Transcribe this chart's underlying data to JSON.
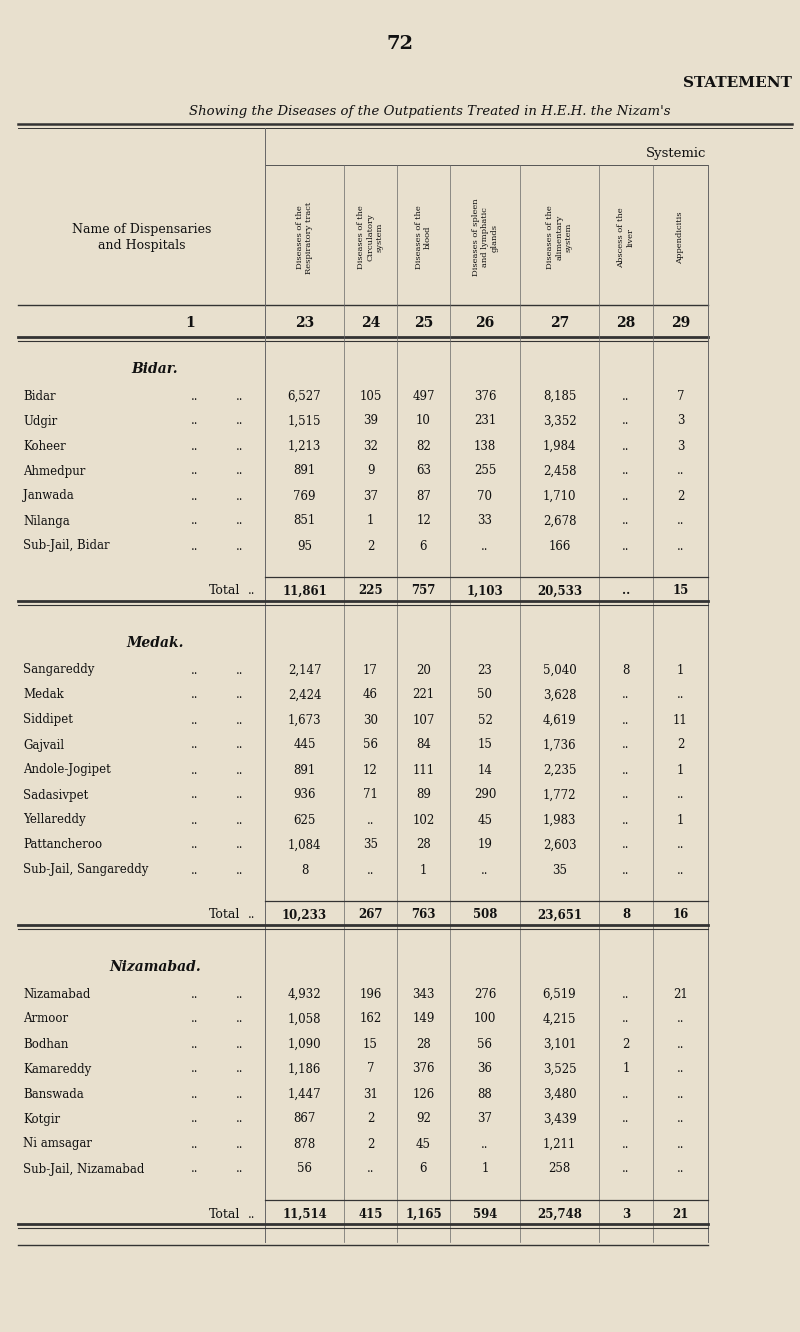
{
  "page_number": "72",
  "statement_title": "STATEMENT",
  "subtitle": "Showing the Diseases of the Outpatients Treated in H.E.H. the Nizam's",
  "systemic_label": "Systemic",
  "col_headers": [
    "Diseases of the\nRespiratory tract",
    "Diseases of the\nCirculatory\nsystem",
    "Diseases of the\nblood",
    "Diseases of spleen\nand lymphatic\nglands",
    "Diseases of the\nalimentary\nsystem",
    "Abscess of the\nliver",
    "Appendicitis"
  ],
  "col_numbers": [
    "23",
    "24",
    "25",
    "26",
    "27",
    "28",
    "29"
  ],
  "bg_color": "#e8e0ce",
  "text_color": "#111111",
  "sections": [
    {
      "section_title": "Bidar.",
      "rows": [
        [
          "Bidar",
          "6,527",
          "105",
          "497",
          "376",
          "8,185",
          "..",
          "7"
        ],
        [
          "Udgir",
          "1,515",
          "39",
          "10",
          "231",
          "3,352",
          "..",
          "3"
        ],
        [
          "Koheer",
          "1,213",
          "32",
          "82",
          "138",
          "1,984",
          "..",
          "3"
        ],
        [
          "Ahmedpur",
          "891",
          "9",
          "63",
          "255",
          "2,458",
          "..",
          ".."
        ],
        [
          "Janwada",
          "769",
          "37",
          "87",
          "70",
          "1,710",
          "..",
          "2"
        ],
        [
          "Nilanga",
          "851",
          "1",
          "12",
          "33",
          "2,678",
          "..",
          ".."
        ],
        [
          "Sub-Jail, Bidar",
          "95",
          "2",
          "6",
          "..",
          "166",
          "..",
          ".."
        ]
      ],
      "total_vals": [
        "11,861",
        "225",
        "757",
        "1,103",
        "20,533",
        "..",
        "15"
      ]
    },
    {
      "section_title": "Medak.",
      "rows": [
        [
          "Sangareddy",
          "2,147",
          "17",
          "20",
          "23",
          "5,040",
          "8",
          "1"
        ],
        [
          "Medak",
          "2,424",
          "46",
          "221",
          "50",
          "3,628",
          "..",
          ".."
        ],
        [
          "Siddipet",
          "1,673",
          "30",
          "107",
          "52",
          "4,619",
          "..",
          "11"
        ],
        [
          "Gajvail",
          "445",
          "56",
          "84",
          "15",
          "1,736",
          "..",
          "2"
        ],
        [
          "Andole-Jogipet",
          "891",
          "12",
          "111",
          "14",
          "2,235",
          "..",
          "1"
        ],
        [
          "Sadasivpet",
          "936",
          "71",
          "89",
          "290",
          "1,772",
          "..",
          ".."
        ],
        [
          "Yellareddy",
          "625",
          "..",
          "102",
          "45",
          "1,983",
          "..",
          "1"
        ],
        [
          "Pattancheroo",
          "1,084",
          "35",
          "28",
          "19",
          "2,603",
          "..",
          ".."
        ],
        [
          "Sub-Jail, Sangareddy",
          "8",
          "..",
          "1",
          "..",
          "35",
          "..",
          ".."
        ]
      ],
      "total_vals": [
        "10,233",
        "267",
        "763",
        "508",
        "23,651",
        "8",
        "16"
      ]
    },
    {
      "section_title": "Nizamabad.",
      "rows": [
        [
          "Nizamabad",
          "4,932",
          "196",
          "343",
          "276",
          "6,519",
          "..",
          "21"
        ],
        [
          "Armoor",
          "1,058",
          "162",
          "149",
          "100",
          "4,215",
          "..",
          ".."
        ],
        [
          "Bodhan",
          "1,090",
          "15",
          "28",
          "56",
          "3,101",
          "2",
          ".."
        ],
        [
          "Kamareddy",
          "1,186",
          "7",
          "376",
          "36",
          "3,525",
          "1",
          ".."
        ],
        [
          "Banswada",
          "1,447",
          "31",
          "126",
          "88",
          "3,480",
          "..",
          ".."
        ],
        [
          "Kotgir",
          "867",
          "2",
          "92",
          "37",
          "3,439",
          "..",
          ".."
        ],
        [
          "Ni amsagar",
          "878",
          "2",
          "45",
          "..",
          "1,211",
          "..",
          ".."
        ],
        [
          "Sub-Jail, Nizamabad",
          "56",
          "..",
          "6",
          "1",
          "258",
          "..",
          ".."
        ]
      ],
      "total_vals": [
        "11,514",
        "415",
        "1,165",
        "594",
        "25,748",
        "3",
        "21"
      ]
    }
  ]
}
